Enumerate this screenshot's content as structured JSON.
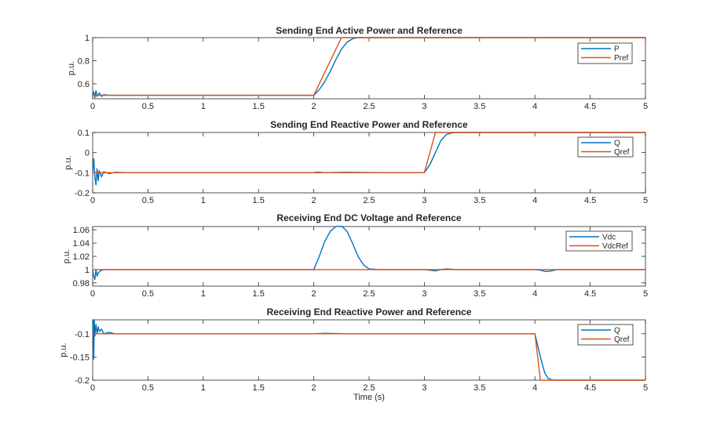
{
  "colors": {
    "series1": "#0072BD",
    "series2": "#D95319",
    "axis": "#262626",
    "background": "#ffffff"
  },
  "figure": {
    "xlabel": "Time (s)"
  },
  "chart_data": [
    {
      "type": "line",
      "title": "Sending End Active Power and Reference",
      "xlabel": "",
      "ylabel": "p.u.",
      "xlim": [
        0,
        5
      ],
      "ylim": [
        0.47,
        1.0
      ],
      "xticks": [
        0,
        0.5,
        1,
        1.5,
        2,
        2.5,
        3,
        3.5,
        4,
        4.5,
        5
      ],
      "xticklabels": [
        "0",
        "0.5",
        "1",
        "1.5",
        "2",
        "2.5",
        "3",
        "3.5",
        "4",
        "4.5",
        "5"
      ],
      "yticks": [
        0.6,
        0.8,
        1
      ],
      "yticklabels": [
        "0.6",
        "0.8",
        "1"
      ],
      "grid": false,
      "legend": "top-right",
      "series": [
        {
          "name": "P",
          "color": "#0072BD",
          "x": [
            0,
            0.01,
            0.02,
            0.03,
            0.04,
            0.06,
            0.08,
            0.1,
            0.15,
            2.0,
            2.05,
            2.1,
            2.15,
            2.2,
            2.25,
            2.3,
            2.35,
            2.4,
            5
          ],
          "y": [
            0.5,
            0.53,
            0.48,
            0.54,
            0.49,
            0.52,
            0.49,
            0.505,
            0.5,
            0.5,
            0.55,
            0.62,
            0.71,
            0.81,
            0.9,
            0.96,
            0.99,
            1.0,
            1.0
          ]
        },
        {
          "name": "Pref",
          "color": "#D95319",
          "x": [
            0,
            2.0,
            2.25,
            5
          ],
          "y": [
            0.5,
            0.5,
            1.0,
            1.0
          ]
        }
      ]
    },
    {
      "type": "line",
      "title": "Sending End Reactive Power and Reference",
      "xlabel": "",
      "ylabel": "p.u.",
      "xlim": [
        0,
        5
      ],
      "ylim": [
        -0.2,
        0.1
      ],
      "xticks": [
        0,
        0.5,
        1,
        1.5,
        2,
        2.5,
        3,
        3.5,
        4,
        4.5,
        5
      ],
      "xticklabels": [
        "0",
        "0.5",
        "1",
        "1.5",
        "2",
        "2.5",
        "3",
        "3.5",
        "4",
        "4.5",
        "5"
      ],
      "yticks": [
        -0.2,
        -0.1,
        0,
        0.1
      ],
      "yticklabels": [
        "-0.2",
        "-0.1",
        "0",
        "0.1"
      ],
      "grid": false,
      "legend": "top-right",
      "series": [
        {
          "name": "Q",
          "color": "#0072BD",
          "x": [
            0,
            0.01,
            0.02,
            0.03,
            0.04,
            0.05,
            0.06,
            0.08,
            0.1,
            0.15,
            0.2,
            0.3,
            2.0,
            2.03,
            2.1,
            2.3,
            2.6,
            3.0,
            3.05,
            3.1,
            3.15,
            3.2,
            3.25,
            3.3,
            5
          ],
          "y": [
            -0.1,
            -0.03,
            -0.12,
            -0.16,
            -0.08,
            -0.14,
            -0.09,
            -0.12,
            -0.095,
            -0.105,
            -0.098,
            -0.1,
            -0.1,
            -0.097,
            -0.1,
            -0.098,
            -0.1,
            -0.1,
            -0.06,
            0.0,
            0.06,
            0.09,
            0.098,
            0.1,
            0.1
          ]
        },
        {
          "name": "Qref",
          "color": "#D95319",
          "x": [
            0,
            3.0,
            3.1,
            5
          ],
          "y": [
            -0.1,
            -0.1,
            0.1,
            0.1
          ]
        }
      ]
    },
    {
      "type": "line",
      "title": "Receiving End DC Voltage and Reference",
      "xlabel": "",
      "ylabel": "p.u.",
      "xlim": [
        0,
        5
      ],
      "ylim": [
        0.975,
        1.065
      ],
      "xticks": [
        0,
        0.5,
        1,
        1.5,
        2,
        2.5,
        3,
        3.5,
        4,
        4.5,
        5
      ],
      "xticklabels": [
        "0",
        "0.5",
        "1",
        "1.5",
        "2",
        "2.5",
        "3",
        "3.5",
        "4",
        "4.5",
        "5"
      ],
      "yticks": [
        0.98,
        1,
        1.02,
        1.04,
        1.06
      ],
      "yticklabels": [
        "0.98",
        "1",
        "1.02",
        "1.04",
        "1.06"
      ],
      "grid": false,
      "legend": "top-right",
      "series": [
        {
          "name": "Vdc",
          "color": "#0072BD",
          "x": [
            0,
            0.01,
            0.02,
            0.03,
            0.04,
            0.05,
            0.07,
            0.1,
            0.2,
            2.0,
            2.05,
            2.1,
            2.15,
            2.2,
            2.25,
            2.3,
            2.35,
            2.4,
            2.45,
            2.5,
            2.6,
            3.0,
            3.05,
            3.1,
            3.15,
            3.2,
            3.3,
            4.0,
            4.05,
            4.1,
            4.15,
            4.2,
            4.3,
            5
          ],
          "y": [
            1.0,
            0.99,
            0.985,
            1.0,
            0.99,
            0.995,
            0.998,
            1.0,
            1.0,
            1.0,
            1.02,
            1.043,
            1.058,
            1.065,
            1.066,
            1.058,
            1.04,
            1.02,
            1.007,
            1.001,
            1.0,
            1.0,
            0.999,
            0.998,
            1.0,
            1.001,
            1.0,
            1.0,
            0.999,
            0.997,
            0.998,
            1.0,
            1.0,
            1.0
          ]
        },
        {
          "name": "VdcRef",
          "color": "#D95319",
          "x": [
            0,
            5
          ],
          "y": [
            1.0,
            1.0
          ]
        }
      ]
    },
    {
      "type": "line",
      "title": "Receiving End Reactive Power and Reference",
      "xlabel": "Time (s)",
      "ylabel": "p.u.",
      "xlim": [
        0,
        5
      ],
      "ylim": [
        -0.2,
        -0.07
      ],
      "xticks": [
        0,
        0.5,
        1,
        1.5,
        2,
        2.5,
        3,
        3.5,
        4,
        4.5,
        5
      ],
      "xticklabels": [
        "0",
        "0.5",
        "1",
        "1.5",
        "2",
        "2.5",
        "3",
        "3.5",
        "4",
        "4.5",
        "5"
      ],
      "yticks": [
        -0.2,
        -0.15,
        -0.1
      ],
      "yticklabels": [
        "-0.2",
        "-0.15",
        "-0.1"
      ],
      "grid": false,
      "legend": "top-right",
      "series": [
        {
          "name": "Q",
          "color": "#0072BD",
          "x": [
            0,
            0.005,
            0.01,
            0.015,
            0.02,
            0.03,
            0.04,
            0.05,
            0.06,
            0.08,
            0.1,
            0.15,
            0.2,
            0.3,
            2.0,
            2.1,
            2.3,
            2.6,
            4.0,
            4.03,
            4.06,
            4.09,
            4.12,
            4.15,
            4.2,
            5
          ],
          "y": [
            -0.1,
            -0.07,
            -0.155,
            -0.07,
            -0.105,
            -0.08,
            -0.1,
            -0.085,
            -0.095,
            -0.09,
            -0.1,
            -0.097,
            -0.1,
            -0.1,
            -0.1,
            -0.099,
            -0.1,
            -0.1,
            -0.1,
            -0.13,
            -0.16,
            -0.185,
            -0.196,
            -0.199,
            -0.2,
            -0.2
          ]
        },
        {
          "name": "Qref",
          "color": "#D95319",
          "x": [
            0,
            4.0,
            4.05,
            5
          ],
          "y": [
            -0.1,
            -0.1,
            -0.2,
            -0.2
          ]
        }
      ]
    }
  ]
}
